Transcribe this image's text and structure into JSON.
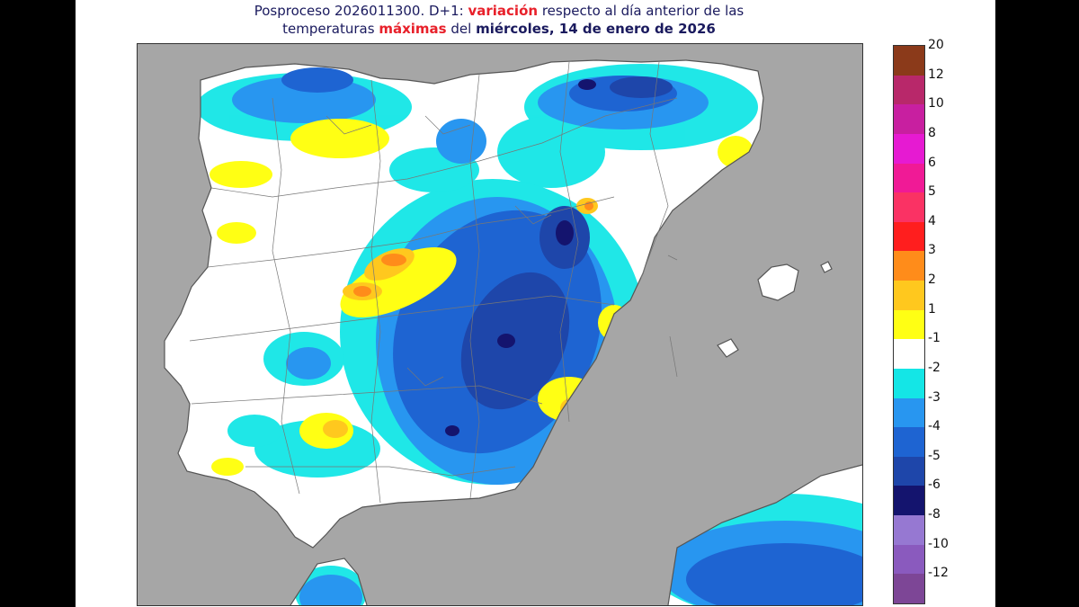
{
  "header": {
    "title_line1_a": "Posproceso 2026011300. D+1: ",
    "title_line1_b": "variación",
    "title_line1_c": " respecto al día anterior de las",
    "title_line2_a": "temperaturas ",
    "title_line2_b": "máximas",
    "title_line2_c": " del ",
    "title_line2_d": "miércoles, 14 de enero de 2026"
  },
  "colors": {
    "sea": "#a6a6a6",
    "land_neutral": "#ffffff",
    "border_line": "#555555"
  },
  "legend": {
    "labels": [
      "20",
      "12",
      "10",
      "8",
      "6",
      "5",
      "4",
      "3",
      "2",
      "1",
      "-1",
      "-2",
      "-3",
      "-4",
      "-5",
      "-6",
      "-8",
      "-10",
      "-12"
    ],
    "colors": [
      "#8b3a1a",
      "#b8286a",
      "#c81fa0",
      "#e61ad2",
      "#f01a96",
      "#fa3264",
      "#ff1e1e",
      "#ff8c1a",
      "#ffc81e",
      "#ffff14",
      "#ffffff",
      "#14e6e6",
      "#2896f0",
      "#1e64d2",
      "#1e46aa",
      "#14146e",
      "#9678d2",
      "#8a5abe",
      "#7d4696"
    ]
  }
}
